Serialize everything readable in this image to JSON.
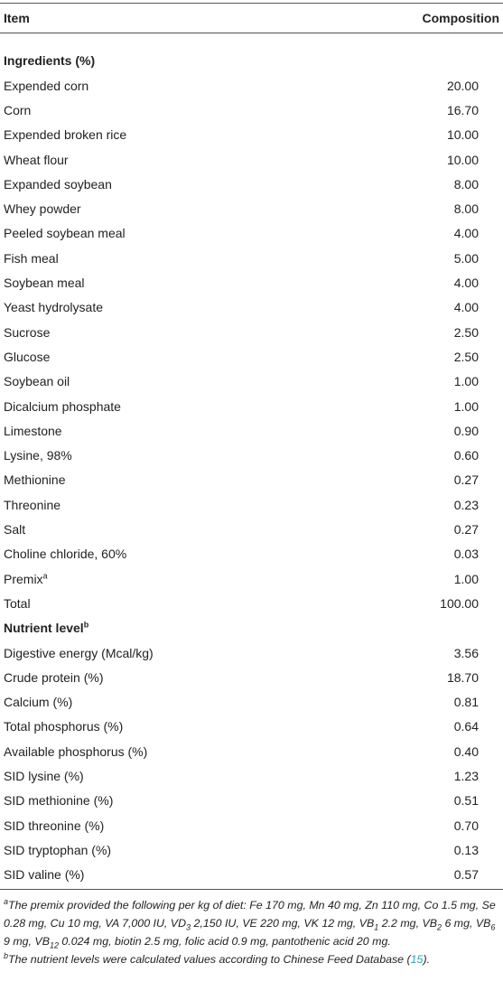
{
  "table": {
    "header": [
      "Item",
      "Composition"
    ],
    "sections": [
      {
        "title": "Ingredients (%)",
        "rows": [
          {
            "item": "Expended corn",
            "value": "20.00"
          },
          {
            "item": "Corn",
            "value": "16.70"
          },
          {
            "item": "Expended broken rice",
            "value": "10.00"
          },
          {
            "item": "Wheat flour",
            "value": "10.00"
          },
          {
            "item": "Expanded soybean",
            "value": "8.00"
          },
          {
            "item": "Whey powder",
            "value": "8.00"
          },
          {
            "item": "Peeled soybean meal",
            "value": "4.00"
          },
          {
            "item": "Fish meal",
            "value": "5.00"
          },
          {
            "item": "Soybean meal",
            "value": "4.00"
          },
          {
            "item": "Yeast hydrolysate",
            "value": "4.00"
          },
          {
            "item": "Sucrose",
            "value": "2.50"
          },
          {
            "item": "Glucose",
            "value": "2.50"
          },
          {
            "item": "Soybean oil",
            "value": "1.00"
          },
          {
            "item": "Dicalcium phosphate",
            "value": "1.00"
          },
          {
            "item": "Limestone",
            "value": "0.90"
          },
          {
            "item": "Lysine, 98%",
            "value": "0.60"
          },
          {
            "item": "Methionine",
            "value": "0.27"
          },
          {
            "item": "Threonine",
            "value": "0.23"
          },
          {
            "item": "Salt",
            "value": "0.27"
          },
          {
            "item": "Choline chloride, 60%",
            "value": "0.03"
          },
          {
            "item": "Premix",
            "sup": "a",
            "value": "1.00"
          },
          {
            "item": "Total",
            "value": "100.00"
          }
        ]
      },
      {
        "title": "Nutrient level",
        "sup": "b",
        "rows": [
          {
            "item": "Digestive energy (Mcal/kg)",
            "value": "3.56"
          },
          {
            "item": "Crude protein (%)",
            "value": "18.70"
          },
          {
            "item": "Calcium (%)",
            "value": "0.81"
          },
          {
            "item": "Total phosphorus (%)",
            "value": "0.64"
          },
          {
            "item": "Available phosphorus (%)",
            "value": "0.40"
          },
          {
            "item": "SID lysine (%)",
            "value": "1.23"
          },
          {
            "item": "SID methionine (%)",
            "value": "0.51"
          },
          {
            "item": "SID threonine (%)",
            "value": "0.70"
          },
          {
            "item": "SID tryptophan (%)",
            "value": "0.13"
          },
          {
            "item": "SID valine (%)",
            "value": "0.57"
          }
        ]
      }
    ]
  },
  "footnotes": [
    {
      "marker": "a",
      "parts": [
        {
          "text": "The premix provided the following per kg of diet: Fe 170 mg, Mn 40 mg, Zn 110 mg, Co 1.5 mg, Se 0.28 mg, Cu 10 mg, VA 7,000 IU, VD"
        },
        {
          "text": "3",
          "style": "sub"
        },
        {
          "text": " 2,150 IU, VE 220 mg, VK 12 mg, VB"
        },
        {
          "text": "1",
          "style": "sub"
        },
        {
          "text": " 2.2 mg, VB"
        },
        {
          "text": "2",
          "style": "sub"
        },
        {
          "text": " 6 mg, VB"
        },
        {
          "text": "6",
          "style": "sub"
        },
        {
          "text": " 9 mg, VB"
        },
        {
          "text": "12",
          "style": "sub"
        },
        {
          "text": " 0.024 mg, biotin 2.5 mg, folic acid 0.9 mg, pantothenic acid 20 mg."
        }
      ]
    },
    {
      "marker": "b",
      "parts": [
        {
          "text": "The nutrient levels were calculated values according to Chinese Feed Database ("
        },
        {
          "text": "15",
          "style": "link"
        },
        {
          "text": ")."
        }
      ]
    }
  ]
}
